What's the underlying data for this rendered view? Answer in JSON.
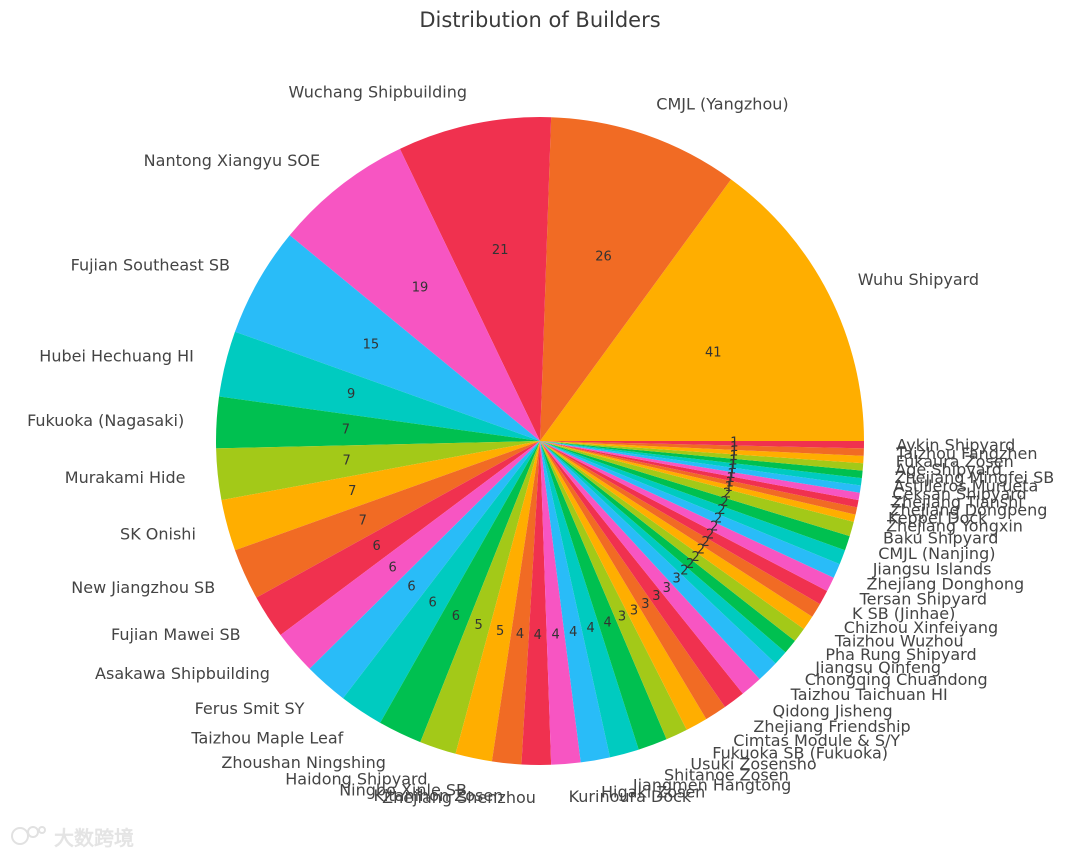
{
  "chart_data": {
    "type": "pie",
    "title": "Distribution of Builders",
    "start_angle_deg": 0,
    "direction": "counterclockwise",
    "palette": [
      "#ffae00",
      "#f16b24",
      "#f0314f",
      "#f755c2",
      "#29bcf8",
      "#00cbc0",
      "#00c050",
      "#a3c918"
    ],
    "slices": [
      {
        "label": "Wuhu Shipyard",
        "value": 41
      },
      {
        "label": "CMJL (Yangzhou)",
        "value": 26
      },
      {
        "label": "Wuchang Shipbuilding",
        "value": 21
      },
      {
        "label": "Nantong Xiangyu SOE",
        "value": 19
      },
      {
        "label": "Fujian Southeast SB",
        "value": 15
      },
      {
        "label": "Hubei Hechuang HI",
        "value": 9
      },
      {
        "label": "Fukuoka (Nagasaki)",
        "value": 7
      },
      {
        "label": "Murakami Hide",
        "value": 7
      },
      {
        "label": "SK Onishi",
        "value": 7
      },
      {
        "label": "New Jiangzhou SB",
        "value": 7
      },
      {
        "label": "Fujian Mawei SB",
        "value": 6
      },
      {
        "label": "Asakawa Shipbuilding",
        "value": 6
      },
      {
        "label": "Ferus Smit SY",
        "value": 6
      },
      {
        "label": "Taizhou Maple Leaf",
        "value": 6
      },
      {
        "label": "Zhoushan Ningshing",
        "value": 6
      },
      {
        "label": "Haidong Shipyard",
        "value": 5
      },
      {
        "label": "Ningbo Xinle SB",
        "value": 5
      },
      {
        "label": "Kitanihon Zosen",
        "value": 4
      },
      {
        "label": "Zhejiang Shenzhou",
        "value": 4
      },
      {
        "label": "Kurinoura Dock",
        "value": 4
      },
      {
        "label": "Higaki Zosen",
        "value": 4
      },
      {
        "label": "Jiangmen Hangtong",
        "value": 4
      },
      {
        "label": "Shitanoe Zosen",
        "value": 4
      },
      {
        "label": "Usuki Zosensho",
        "value": 3
      },
      {
        "label": "Fukuoka SB (Fukuoka)",
        "value": 3
      },
      {
        "label": "Cimtas Module & S/Y",
        "value": 3
      },
      {
        "label": "Zhejiang Friendship",
        "value": 3
      },
      {
        "label": "Qidong Jisheng",
        "value": 3
      },
      {
        "label": "Taizhou Taichuan HI",
        "value": 3
      },
      {
        "label": "Chongqing Chuandong",
        "value": 2
      },
      {
        "label": "Jiangsu Qinfeng",
        "value": 2
      },
      {
        "label": "Pha Rung Shipyard",
        "value": 2
      },
      {
        "label": "Taizhou Wuzhou",
        "value": 2
      },
      {
        "label": "Chizhou Xinfeiyang",
        "value": 2
      },
      {
        "label": "K SB (Jinhae)",
        "value": 2
      },
      {
        "label": "Tersan Shipyard",
        "value": 2
      },
      {
        "label": "Zhejiang Donghong",
        "value": 2
      },
      {
        "label": "Jiangsu Islands",
        "value": 2
      },
      {
        "label": "CMJL (Nanjing)",
        "value": 2
      },
      {
        "label": "Baku Shipyard",
        "value": 2
      },
      {
        "label": "Zhejiang Yongxin",
        "value": 1
      },
      {
        "label": "Keppel Dock",
        "value": 1
      },
      {
        "label": "Zhejiang Dongpeng",
        "value": 1
      },
      {
        "label": "Zhejiang Tianshi",
        "value": 1
      },
      {
        "label": "Ceksan Shipyard",
        "value": 1
      },
      {
        "label": "Astilleros Murueta",
        "value": 1
      },
      {
        "label": "Zhejiang Mingfei SB",
        "value": 1
      },
      {
        "label": "Age Shipyard",
        "value": 1
      },
      {
        "label": "Fukaura Zosen",
        "value": 1
      },
      {
        "label": "Taizhou Fangzhen",
        "value": 1
      },
      {
        "label": "Aykin Shipyard",
        "value": 1
      }
    ]
  },
  "watermark_text": "大数跨境"
}
